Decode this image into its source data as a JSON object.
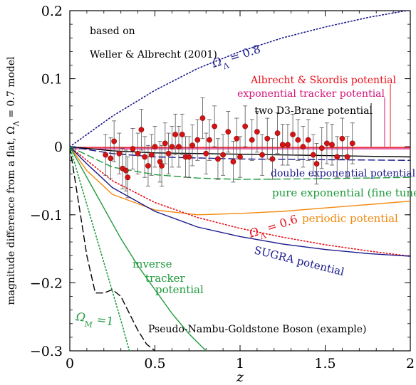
{
  "chart_data": {
    "type": "line",
    "title": "",
    "xlabel": "z",
    "ylabel": "magnitude difference from a flat, ΩΛ = 0.7 model",
    "ylabel_parts": {
      "main": "magnitude difference from a flat, Ω",
      "sub": "Λ",
      "tail": " = 0.7 model"
    },
    "xlim": [
      0,
      2
    ],
    "ylim": [
      -0.3,
      0.2
    ],
    "xticks": [
      0,
      0.5,
      1,
      1.5,
      2
    ],
    "xtick_labels": [
      "0",
      "0.5",
      "1",
      "1.5",
      "2"
    ],
    "yticks": [
      -0.3,
      -0.2,
      -0.1,
      0,
      0.1,
      0.2
    ],
    "ytick_labels": [
      "−0.3",
      "−0.2",
      "−0.1",
      "0",
      "0.1",
      "0.2"
    ],
    "grid": false,
    "annotations": {
      "based_on_1": "based on",
      "based_on_2": "Weller & Albrecht (2001)",
      "albrecht_skordis": "Albrecht & Skordis potential",
      "exp_tracker": "exponential tracker potential",
      "d3_brane": "two D3-Brane potential",
      "omega_lambda_08": {
        "sym": "Ω",
        "sub": "Λ",
        "text": " = 0.8"
      },
      "double_exp": "double exponential potential",
      "pure_exp": "pure exponential (fine tuned)",
      "periodic": "periodic potential",
      "omega_lambda_06": {
        "sym": "Ω",
        "sub": "Λ",
        "text": " = 0.6"
      },
      "sugra": "SUGRA potential",
      "inverse_tracker_1": "inverse",
      "inverse_tracker_2": "tracker",
      "inverse_tracker_3": "potential",
      "omega_m_1": {
        "sym": "Ω",
        "sub": "M",
        "text": " =1"
      },
      "pngb": "Pseudo-Nambu-Goldstone Boson (example)"
    },
    "colors": {
      "blue": "#1a1a8c",
      "red": "#e8101a",
      "magenta": "#d4147a",
      "green": "#1f9a3c",
      "orange": "#f28a10",
      "black": "#000000",
      "point": "#d41414"
    },
    "series": [
      {
        "name": "",
        "color": "blue",
        "dash": "dotted",
        "x": [
          0,
          0.25,
          0.5,
          0.75,
          1.0,
          1.25,
          1.5,
          1.75,
          2.0
        ],
        "y": [
          0,
          0.045,
          0.083,
          0.115,
          0.14,
          0.16,
          0.176,
          0.19,
          0.201
        ]
      },
      {
        "name": "",
        "color": "red",
        "dash": "solid",
        "x": [
          0,
          2
        ],
        "y": [
          -0.001,
          -0.001
        ]
      },
      {
        "name": "",
        "color": "magenta",
        "dash": "solid",
        "x": [
          0,
          2
        ],
        "y": [
          -0.003,
          -0.003
        ]
      },
      {
        "name": "",
        "color": "black",
        "dash": "solid",
        "x": [
          0,
          0.25,
          0.5,
          1.0,
          1.5,
          2.0
        ],
        "y": [
          0,
          -0.006,
          -0.009,
          -0.011,
          -0.013,
          -0.015
        ]
      },
      {
        "name": "",
        "color": "blue",
        "dash": "dashed",
        "x": [
          0,
          0.25,
          0.5,
          1.0,
          1.5,
          2.0
        ],
        "y": [
          0,
          -0.01,
          -0.015,
          -0.018,
          -0.019,
          -0.02
        ]
      },
      {
        "name": "",
        "color": "green",
        "dash": "dashed",
        "x": [
          0,
          0.25,
          0.5,
          0.75,
          1.0,
          1.5,
          2.0
        ],
        "y": [
          0,
          -0.03,
          -0.041,
          -0.046,
          -0.048,
          -0.047,
          -0.045
        ]
      },
      {
        "name": "",
        "color": "orange",
        "dash": "solid",
        "x": [
          0,
          0.1,
          0.25,
          0.5,
          0.75,
          1.0,
          1.25,
          1.5,
          1.75,
          2.0
        ],
        "y": [
          0,
          -0.035,
          -0.07,
          -0.093,
          -0.1,
          -0.098,
          -0.095,
          -0.09,
          -0.085,
          -0.08
        ]
      },
      {
        "name": "",
        "color": "red",
        "dash": "dotted",
        "x": [
          0,
          0.25,
          0.5,
          0.75,
          1.0,
          1.25,
          1.5,
          1.75,
          2.0
        ],
        "y": [
          0,
          -0.05,
          -0.082,
          -0.104,
          -0.12,
          -0.133,
          -0.144,
          -0.153,
          -0.161
        ]
      },
      {
        "name": "",
        "color": "blue",
        "dash": "solid",
        "x": [
          0,
          0.1,
          0.25,
          0.5,
          0.75,
          1.0,
          1.25,
          1.5,
          1.75,
          2.0
        ],
        "y": [
          0,
          -0.025,
          -0.06,
          -0.095,
          -0.118,
          -0.132,
          -0.143,
          -0.151,
          -0.157,
          -0.161
        ]
      },
      {
        "name": "",
        "color": "green",
        "dash": "solid",
        "x": [
          0,
          0.1,
          0.2,
          0.3,
          0.4,
          0.5,
          0.6,
          0.7,
          0.8
        ],
        "y": [
          0,
          -0.045,
          -0.09,
          -0.135,
          -0.175,
          -0.21,
          -0.245,
          -0.275,
          -0.3
        ]
      },
      {
        "name": "",
        "color": "black",
        "dash": "dashed",
        "x": [
          0,
          0.05,
          0.1,
          0.15,
          0.2,
          0.25,
          0.3,
          0.35,
          0.4,
          0.45,
          0.5
        ],
        "y": [
          0,
          -0.08,
          -0.16,
          -0.215,
          -0.215,
          -0.21,
          -0.22,
          -0.245,
          -0.27,
          -0.29,
          -0.3
        ]
      },
      {
        "name": "",
        "color": "green",
        "dash": "dotted",
        "x": [
          0,
          0.1,
          0.2,
          0.3,
          0.35
        ],
        "y": [
          0,
          -0.085,
          -0.17,
          -0.255,
          -0.3
        ]
      }
    ],
    "points": {
      "x": [
        0.21,
        0.24,
        0.26,
        0.29,
        0.31,
        0.33,
        0.34,
        0.37,
        0.4,
        0.42,
        0.44,
        0.46,
        0.48,
        0.5,
        0.53,
        0.54,
        0.56,
        0.58,
        0.6,
        0.62,
        0.64,
        0.66,
        0.68,
        0.7,
        0.72,
        0.75,
        0.78,
        0.8,
        0.82,
        0.85,
        0.87,
        0.9,
        0.93,
        0.96,
        0.98,
        1.0,
        1.03,
        1.07,
        1.1,
        1.13,
        1.16,
        1.19,
        1.22,
        1.25,
        1.28,
        1.31,
        1.34,
        1.37,
        1.4,
        1.43,
        1.45,
        1.48,
        1.51,
        1.54,
        1.57,
        1.6,
        1.63,
        1.66
      ],
      "y": [
        -0.012,
        -0.017,
        0.008,
        -0.01,
        -0.032,
        -0.035,
        -0.045,
        -0.003,
        -0.01,
        0.025,
        -0.015,
        -0.028,
        -0.012,
        0.0,
        -0.022,
        -0.028,
        0.005,
        -0.01,
        0.0,
        0.018,
        0.0,
        0.018,
        -0.015,
        -0.015,
        0.002,
        0.01,
        0.042,
        -0.01,
        0.01,
        0.03,
        -0.018,
        -0.012,
        0.022,
        -0.022,
        0.012,
        -0.015,
        0.03,
        0.01,
        0.022,
        -0.012,
        0.012,
        -0.018,
        0.02,
        0.003,
        0.003,
        0.018,
        0.01,
        0.0,
        0.01,
        -0.012,
        -0.025,
        -0.002,
        0.005,
        0.003,
        -0.015,
        0.012,
        -0.015,
        0.005
      ],
      "err": 0.03
    }
  }
}
